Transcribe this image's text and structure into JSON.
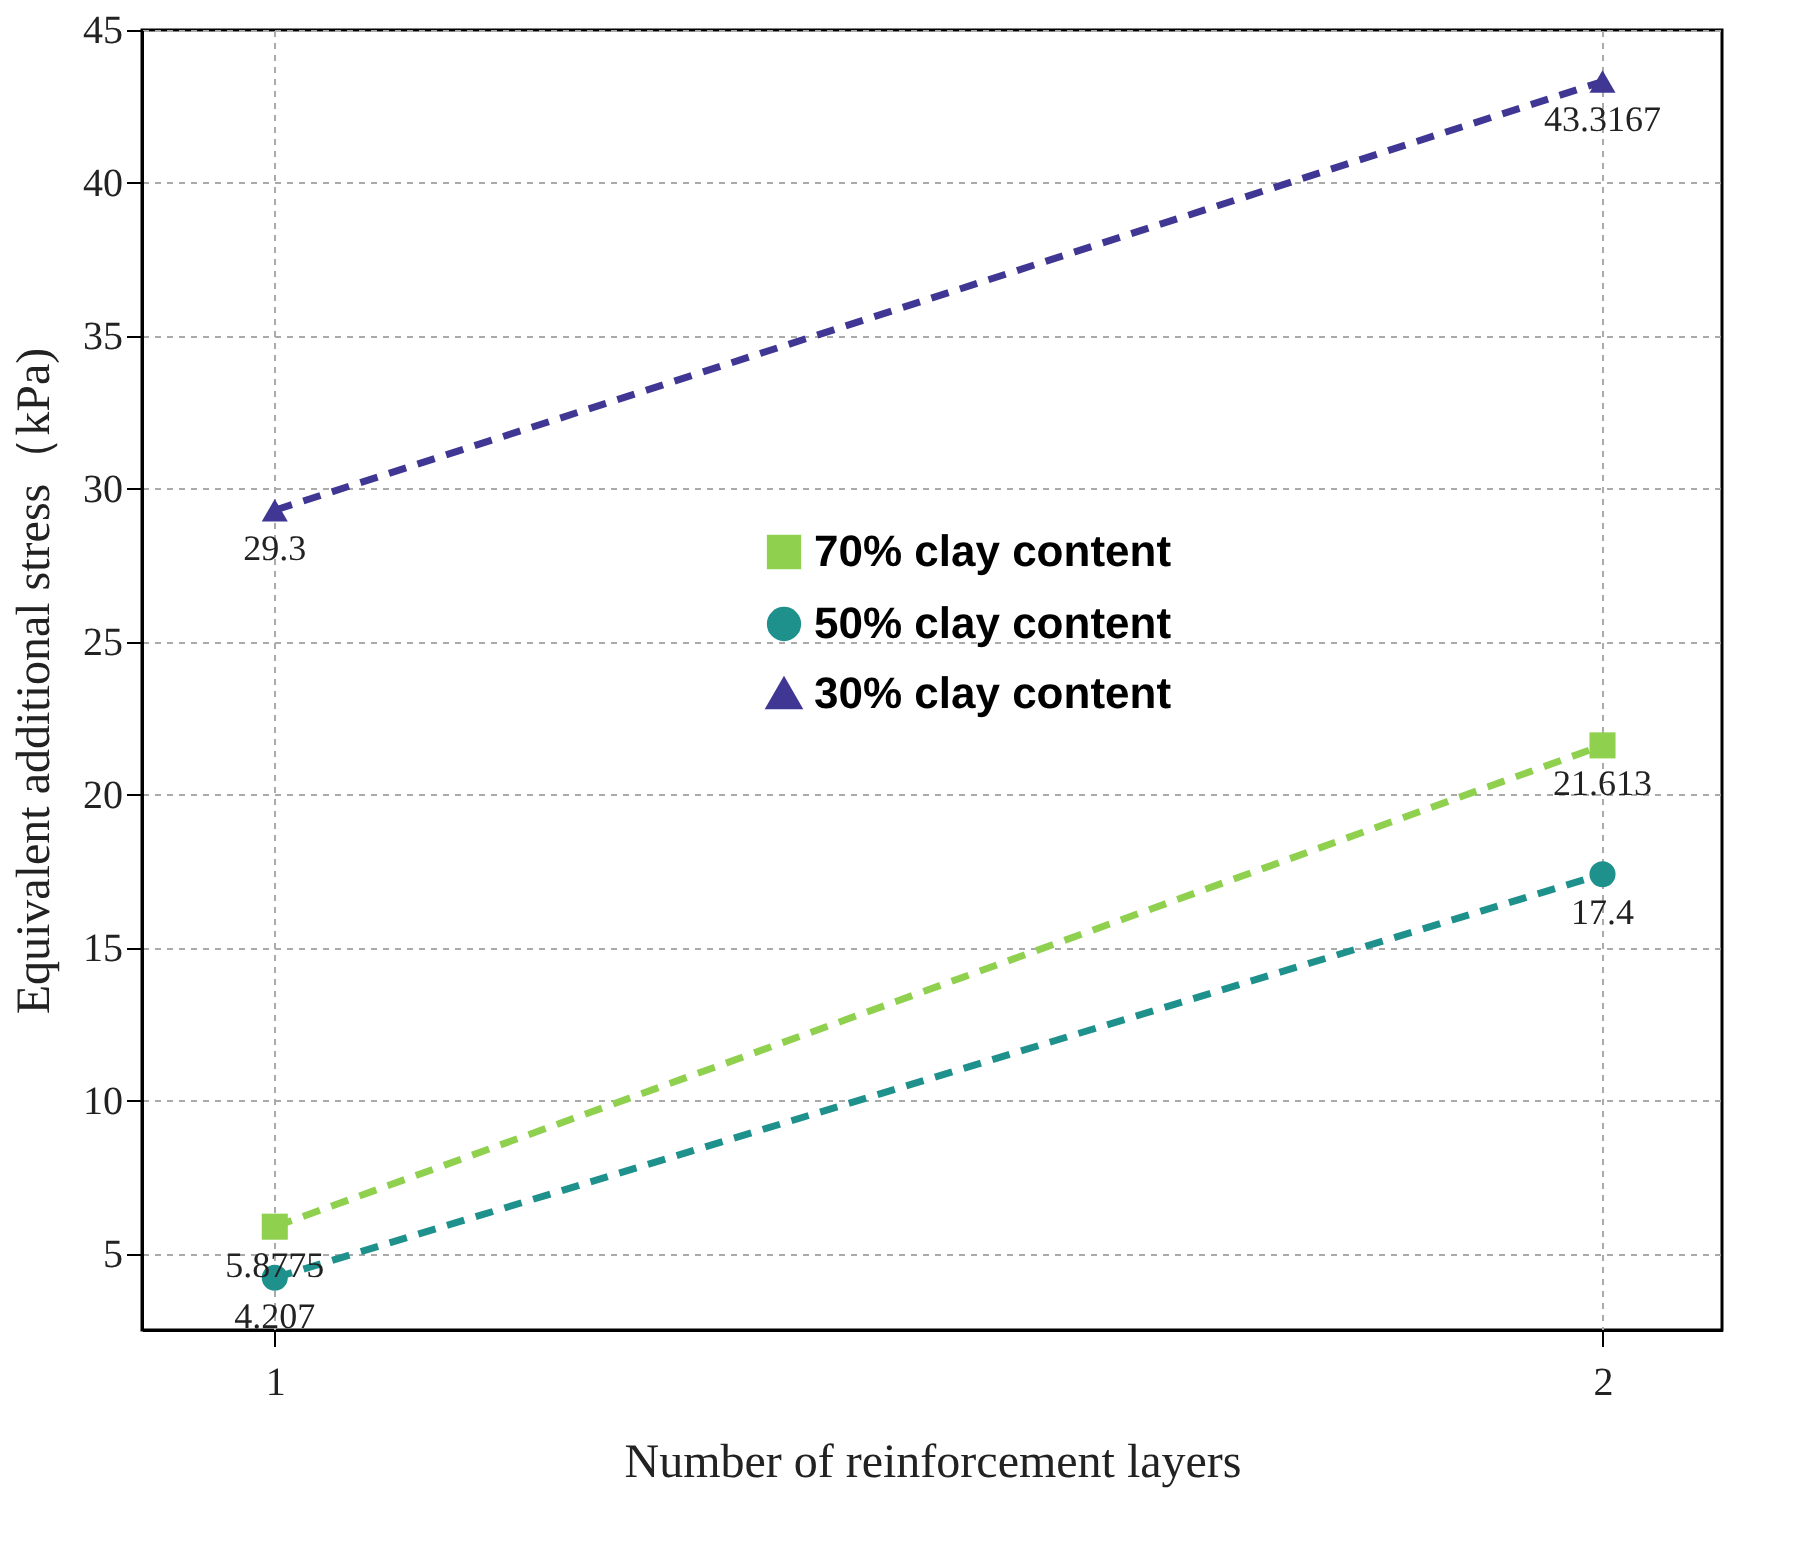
{
  "chart_data": {
    "type": "line",
    "xlabel": "Number of reinforcement layers",
    "ylabel": "Equivalent additional stress（kPa)",
    "x": [
      1,
      2
    ],
    "xlim": [
      0.9,
      2.09
    ],
    "xticks": [
      1,
      2
    ],
    "ylim": [
      2.5,
      45
    ],
    "yticks": [
      5,
      10,
      15,
      20,
      25,
      30,
      35,
      40,
      45
    ],
    "series": [
      {
        "name": "70% clay content",
        "color": "#8fd14f",
        "values": [
          5.8775,
          21.613
        ],
        "marker": "square"
      },
      {
        "name": "50% clay content",
        "color": "#1f918c",
        "values": [
          4.207,
          17.4
        ],
        "marker": "circle"
      },
      {
        "name": "30% clay content",
        "color": "#3f3793",
        "values": [
          29.3,
          43.3167
        ],
        "marker": "triangle"
      }
    ],
    "line_style": "dashed",
    "grid": true,
    "legend": "center",
    "data_labels": true
  }
}
